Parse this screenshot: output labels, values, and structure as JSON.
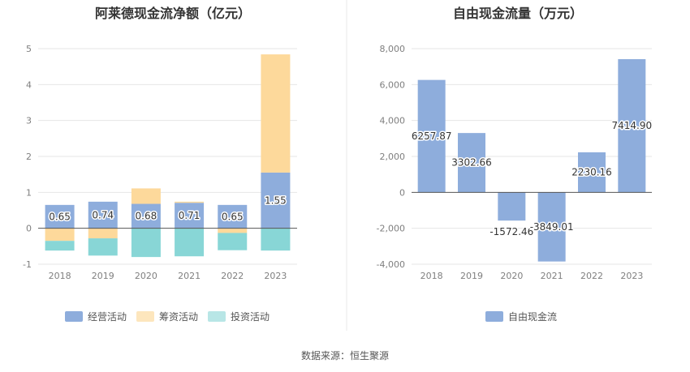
{
  "footer": {
    "source": "数据来源：恒生聚源"
  },
  "colors": {
    "operating": "#8eaddc",
    "financing": "#fdd99b",
    "investing": "#88d6d6",
    "legend_investing": "#b8e6e6",
    "fcf": "#8eaddc"
  },
  "chart_data": [
    {
      "type": "bar",
      "stacked": true,
      "title": "阿莱德现金流净额（亿元）",
      "categories": [
        "2018",
        "2019",
        "2020",
        "2021",
        "2022",
        "2023"
      ],
      "ylim": [
        -1,
        5
      ],
      "yticks": [
        "5",
        "4",
        "3",
        "2",
        "1",
        "0",
        "-1"
      ],
      "grid": true,
      "legend_position": "bottom",
      "series": [
        {
          "name": "经营活动",
          "values": [
            0.65,
            0.74,
            0.68,
            0.71,
            0.65,
            1.55
          ],
          "labels": [
            "0.65",
            "0.74",
            "0.68",
            "0.71",
            "0.65",
            "1.55"
          ]
        },
        {
          "name": "筹资活动",
          "values": [
            -0.35,
            -0.28,
            0.43,
            0.03,
            -0.13,
            3.29
          ]
        },
        {
          "name": "投资活动",
          "values": [
            -0.27,
            -0.48,
            -0.8,
            -0.78,
            -0.48,
            -0.62
          ]
        }
      ]
    },
    {
      "type": "bar",
      "title": "自由现金流量（万元）",
      "categories": [
        "2018",
        "2019",
        "2020",
        "2021",
        "2022",
        "2023"
      ],
      "ylim": [
        -4000,
        8000
      ],
      "yticks": [
        "8,000",
        "6,000",
        "4,000",
        "2,000",
        "0",
        "-2,000",
        "-4,000"
      ],
      "grid": true,
      "legend_position": "bottom",
      "series": [
        {
          "name": "自由现金流",
          "values": [
            6257.87,
            3302.66,
            -1572.46,
            -3849.01,
            2230.16,
            7414.9
          ],
          "labels": [
            "6257.87",
            "3302.66",
            "-1572.46",
            "-3849.01",
            "2230.16",
            "7414.90"
          ]
        }
      ]
    }
  ]
}
